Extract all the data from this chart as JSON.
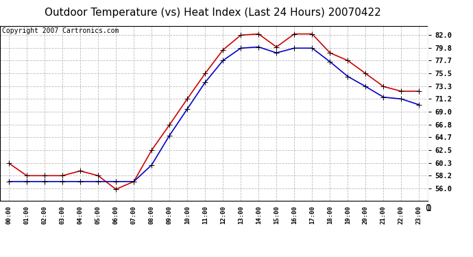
{
  "title": "Outdoor Temperature (vs) Heat Index (Last 24 Hours) 20070422",
  "copyright_text": "Copyright 2007 Cartronics.com",
  "x_labels": [
    "00:00",
    "01:00",
    "02:00",
    "03:00",
    "04:00",
    "05:00",
    "06:00",
    "07:00",
    "08:00",
    "09:00",
    "10:00",
    "11:00",
    "12:00",
    "13:00",
    "14:00",
    "15:00",
    "16:00",
    "17:00",
    "18:00",
    "19:00",
    "20:00",
    "21:00",
    "22:00",
    "23:00"
  ],
  "temp_data": [
    60.3,
    58.2,
    58.2,
    58.2,
    59.0,
    58.2,
    55.9,
    57.2,
    62.5,
    66.8,
    71.2,
    75.5,
    79.5,
    82.0,
    82.2,
    80.0,
    82.2,
    82.2,
    79.0,
    77.7,
    75.5,
    73.3,
    72.5,
    72.5
  ],
  "heat_index_data": [
    57.2,
    57.2,
    57.2,
    57.2,
    57.2,
    57.2,
    57.2,
    57.2,
    60.0,
    65.0,
    69.5,
    74.0,
    77.7,
    79.8,
    80.0,
    79.0,
    79.8,
    79.8,
    77.5,
    75.0,
    73.3,
    71.5,
    71.2,
    70.2
  ],
  "ylim_min": 54.0,
  "ylim_max": 83.6,
  "yticks": [
    56.0,
    58.2,
    60.3,
    62.5,
    64.7,
    66.8,
    69.0,
    71.2,
    73.3,
    75.5,
    77.7,
    79.8,
    82.0
  ],
  "temp_color": "#CC0000",
  "heat_index_color": "#0000CC",
  "grid_color": "#BBBBBB",
  "bg_color": "#FFFFFF",
  "plot_bg_color": "#FFFFFF",
  "title_fontsize": 11,
  "copyright_fontsize": 7,
  "marker": "+",
  "marker_size": 6,
  "line_width": 1.2
}
